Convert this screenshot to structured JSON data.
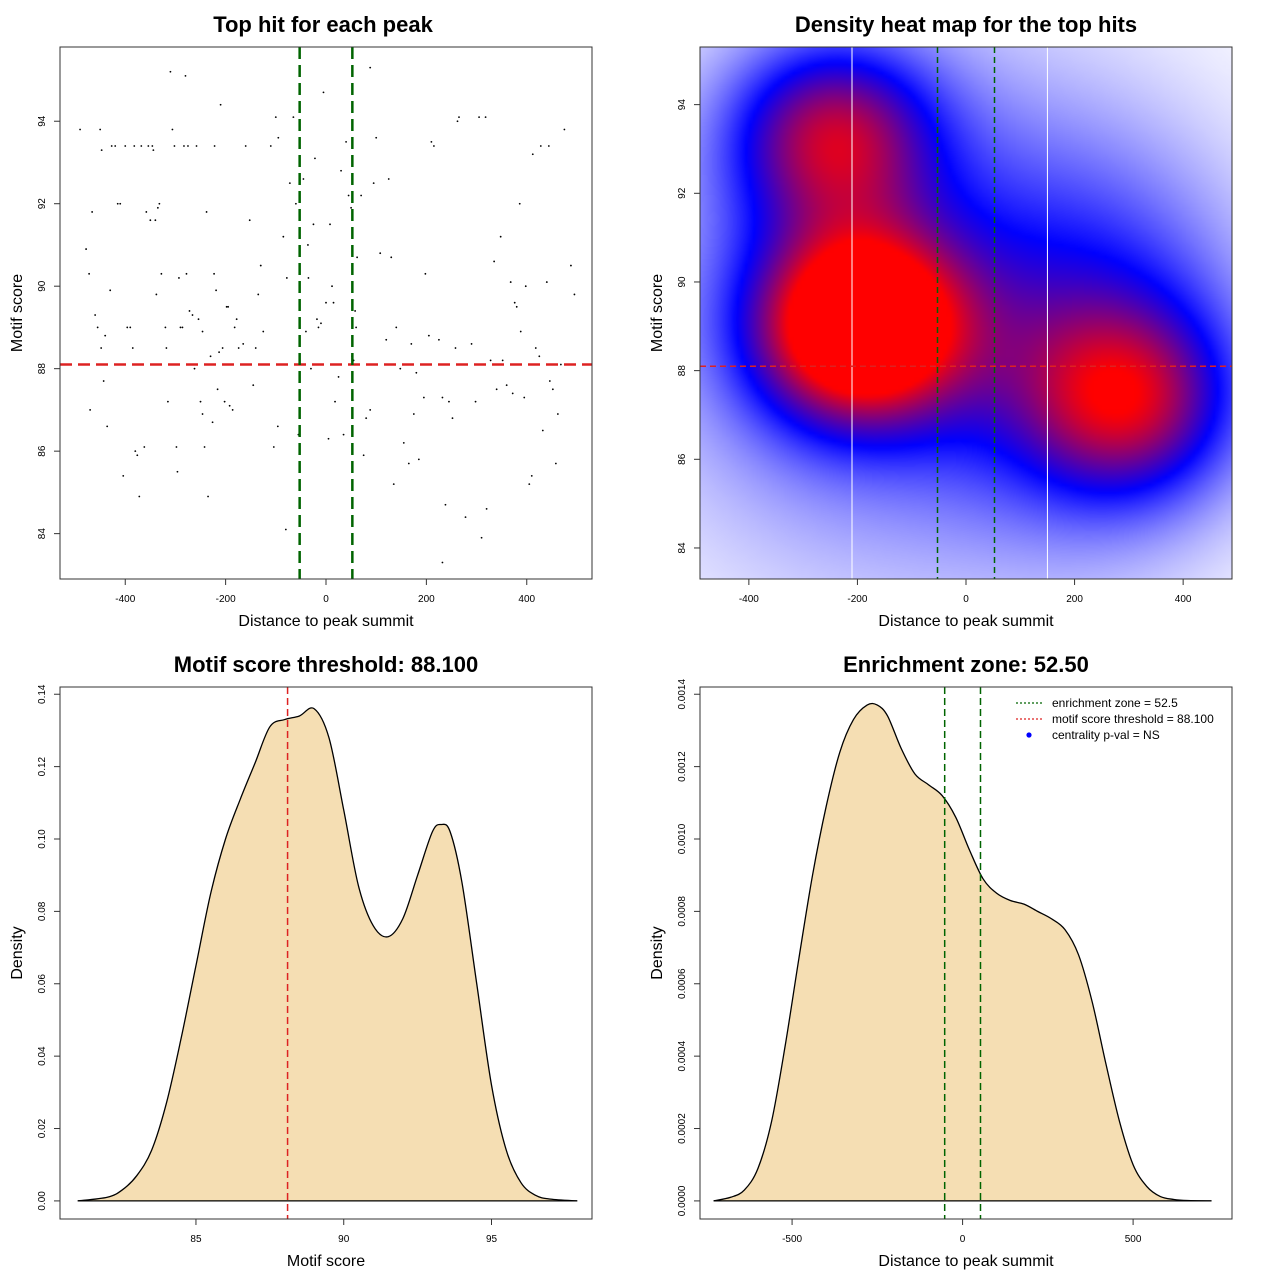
{
  "chart_data": [
    {
      "type": "scatter",
      "title": "Top hit for each peak",
      "xlabel": "Distance to peak summit",
      "ylabel": "Motif score",
      "xlim": [
        -530,
        530
      ],
      "ylim": [
        82.9,
        95.8
      ],
      "xticks": [
        -400,
        -200,
        0,
        200,
        400
      ],
      "yticks": [
        84,
        86,
        88,
        90,
        92,
        94
      ],
      "hline": 88.1,
      "vlines": [
        -52.5,
        52.5
      ],
      "colors": {
        "points": "#000000",
        "hline": "#dd2222",
        "vlines": "#006400"
      },
      "points": [
        [
          -490,
          93.8
        ],
        [
          -478,
          90.9
        ],
        [
          -472,
          90.3
        ],
        [
          -466,
          91.8
        ],
        [
          -460,
          89.3
        ],
        [
          -455,
          89.0
        ],
        [
          -450,
          93.8
        ],
        [
          -448,
          88.5
        ],
        [
          -443,
          87.7
        ],
        [
          -440,
          88.8
        ],
        [
          -436,
          86.6
        ],
        [
          -430,
          89.9
        ],
        [
          -420,
          93.4
        ],
        [
          -415,
          92.0
        ],
        [
          -410,
          92.0
        ],
        [
          -400,
          93.4
        ],
        [
          -396,
          89.0
        ],
        [
          -390,
          89.0
        ],
        [
          -385,
          88.5
        ],
        [
          -380,
          86.0
        ],
        [
          -376,
          85.9
        ],
        [
          -372,
          84.9
        ],
        [
          -368,
          93.4
        ],
        [
          -362,
          86.1
        ],
        [
          -358,
          91.8
        ],
        [
          -354,
          93.4
        ],
        [
          -350,
          91.6
        ],
        [
          -346,
          93.4
        ],
        [
          -340,
          91.6
        ],
        [
          -338,
          89.8
        ],
        [
          -335,
          91.9
        ],
        [
          -332,
          92.0
        ],
        [
          -328,
          90.3
        ],
        [
          -320,
          89.0
        ],
        [
          -315,
          87.2
        ],
        [
          -310,
          95.2
        ],
        [
          -306,
          93.8
        ],
        [
          -302,
          93.4
        ],
        [
          -298,
          86.1
        ],
        [
          -296,
          85.5
        ],
        [
          -293,
          90.2
        ],
        [
          -290,
          89.0
        ],
        [
          -286,
          89.0
        ],
        [
          -283,
          93.4
        ],
        [
          -280,
          95.1
        ],
        [
          -278,
          90.3
        ],
        [
          -275,
          93.4
        ],
        [
          -272,
          89.4
        ],
        [
          -270,
          88.1
        ],
        [
          -266,
          89.3
        ],
        [
          -262,
          88.0
        ],
        [
          -258,
          93.4
        ],
        [
          -254,
          89.2
        ],
        [
          -250,
          87.2
        ],
        [
          -246,
          86.9
        ],
        [
          -242,
          86.1
        ],
        [
          -238,
          91.8
        ],
        [
          -235,
          84.9
        ],
        [
          -230,
          88.3
        ],
        [
          -226,
          86.7
        ],
        [
          -222,
          93.4
        ],
        [
          -219,
          89.9
        ],
        [
          -216,
          87.5
        ],
        [
          -213,
          88.4
        ],
        [
          -210,
          94.4
        ],
        [
          -206,
          88.5
        ],
        [
          -202,
          87.2
        ],
        [
          -198,
          89.5
        ],
        [
          -195,
          89.5
        ],
        [
          -192,
          87.1
        ],
        [
          -186,
          87.0
        ],
        [
          -182,
          89.0
        ],
        [
          -178,
          89.2
        ],
        [
          -174,
          88.5
        ],
        [
          -165,
          88.6
        ],
        [
          -160,
          93.4
        ],
        [
          -152,
          91.6
        ],
        [
          -145,
          87.6
        ],
        [
          -140,
          88.5
        ],
        [
          -135,
          89.8
        ],
        [
          -130,
          90.5
        ],
        [
          -125,
          88.9
        ],
        [
          -110,
          93.4
        ],
        [
          -104,
          86.1
        ],
        [
          -100,
          94.1
        ],
        [
          -95,
          93.6
        ],
        [
          -85,
          91.2
        ],
        [
          -78,
          90.2
        ],
        [
          -72,
          92.5
        ],
        [
          -65,
          94.1
        ],
        [
          -60,
          92.0
        ],
        [
          -55,
          86.4
        ],
        [
          -45,
          92.6
        ],
        [
          -40,
          88.9
        ],
        [
          -35,
          90.2
        ],
        [
          -30,
          88.0
        ],
        [
          -25,
          91.5
        ],
        [
          -22,
          93.1
        ],
        [
          -18,
          89.2
        ],
        [
          -15,
          89.0
        ],
        [
          -10,
          89.1
        ],
        [
          -5,
          94.7
        ],
        [
          0,
          89.6
        ],
        [
          5,
          86.3
        ],
        [
          8,
          91.5
        ],
        [
          12,
          90.0
        ],
        [
          15,
          89.6
        ],
        [
          18,
          87.2
        ],
        [
          25,
          87.8
        ],
        [
          30,
          92.8
        ],
        [
          35,
          86.4
        ],
        [
          40,
          93.5
        ],
        [
          45,
          92.2
        ],
        [
          50,
          91.9
        ],
        [
          52,
          88.3
        ],
        [
          55,
          88.2
        ],
        [
          58,
          89.4
        ],
        [
          60,
          89.0
        ],
        [
          62,
          90.7
        ],
        [
          70,
          92.2
        ],
        [
          75,
          85.9
        ],
        [
          80,
          86.8
        ],
        [
          88,
          87.0
        ],
        [
          95,
          92.5
        ],
        [
          100,
          93.6
        ],
        [
          108,
          90.8
        ],
        [
          120,
          88.7
        ],
        [
          125,
          92.6
        ],
        [
          130,
          90.7
        ],
        [
          140,
          89.0
        ],
        [
          148,
          88.0
        ],
        [
          155,
          86.2
        ],
        [
          165,
          85.7
        ],
        [
          170,
          88.6
        ],
        [
          175,
          86.9
        ],
        [
          180,
          87.9
        ],
        [
          185,
          85.8
        ],
        [
          195,
          87.3
        ],
        [
          205,
          88.8
        ],
        [
          210,
          93.5
        ],
        [
          215,
          93.4
        ],
        [
          225,
          88.7
        ],
        [
          232,
          87.3
        ],
        [
          238,
          84.7
        ],
        [
          245,
          87.2
        ],
        [
          252,
          86.8
        ],
        [
          258,
          88.5
        ],
        [
          265,
          94.1
        ],
        [
          278,
          84.4
        ],
        [
          290,
          88.6
        ],
        [
          298,
          87.2
        ],
        [
          305,
          94.1
        ],
        [
          318,
          94.1
        ],
        [
          328,
          88.2
        ],
        [
          335,
          90.6
        ],
        [
          340,
          87.5
        ],
        [
          352,
          88.2
        ],
        [
          360,
          87.6
        ],
        [
          368,
          90.1
        ],
        [
          372,
          87.4
        ],
        [
          376,
          89.6
        ],
        [
          380,
          89.5
        ],
        [
          388,
          88.9
        ],
        [
          395,
          87.3
        ],
        [
          398,
          90.0
        ],
        [
          405,
          85.2
        ],
        [
          410,
          85.4
        ],
        [
          418,
          88.5
        ],
        [
          425,
          88.3
        ],
        [
          432,
          86.5
        ],
        [
          440,
          90.1
        ],
        [
          446,
          87.7
        ],
        [
          452,
          87.5
        ],
        [
          458,
          85.7
        ],
        [
          462,
          86.9
        ],
        [
          468,
          88.1
        ],
        [
          475,
          93.8
        ],
        [
          488,
          90.5
        ],
        [
          495,
          89.8
        ],
        [
          -470,
          87.0
        ],
        [
          -447,
          93.3
        ],
        [
          -427,
          93.4
        ],
        [
          -404,
          85.4
        ],
        [
          -382,
          93.4
        ],
        [
          -344,
          93.3
        ],
        [
          -318,
          88.5
        ],
        [
          -246,
          88.9
        ],
        [
          -223,
          90.3
        ],
        [
          -96,
          86.6
        ],
        [
          -80,
          84.1
        ],
        [
          -36,
          91.0
        ],
        [
          88,
          95.3
        ],
        [
          135,
          85.2
        ],
        [
          198,
          90.3
        ],
        [
          232,
          83.3
        ],
        [
          262,
          94.0
        ],
        [
          310,
          83.9
        ],
        [
          320,
          84.6
        ],
        [
          348,
          91.2
        ],
        [
          386,
          92.0
        ],
        [
          412,
          93.2
        ],
        [
          428,
          93.4
        ],
        [
          444,
          93.4
        ]
      ]
    },
    {
      "type": "heatmap",
      "title": "Density heat map for the top hits",
      "xlabel": "Distance to peak summit",
      "ylabel": "Motif score",
      "xlim": [
        -490,
        490
      ],
      "ylim": [
        83.3,
        95.3
      ],
      "xticks": [
        -400,
        -200,
        0,
        200,
        400
      ],
      "yticks": [
        84,
        86,
        88,
        90,
        92,
        94
      ],
      "hline": 88.1,
      "vlines_dashed": [
        -52.5,
        52.5
      ],
      "vlines_solid": [
        -210,
        150
      ],
      "colors": {
        "low": "#ffffff",
        "mid": "#0000ff",
        "high": "#ff0000",
        "hline": "#dd2222",
        "vlines_dashed": "#006400",
        "vlines_solid": "#ffffff"
      },
      "density_centers": [
        {
          "x": -195,
          "y": 89.0,
          "weight": 1.0
        },
        {
          "x": -245,
          "y": 93.3,
          "weight": 0.6
        },
        {
          "x": 300,
          "y": 87.3,
          "weight": 0.5
        }
      ]
    },
    {
      "type": "area",
      "title": "Motif score threshold: 88.100",
      "xlabel": "Motif score",
      "ylabel": "Density",
      "xlim": [
        80.4,
        98.4
      ],
      "ylim": [
        -0.005,
        0.142
      ],
      "xticks": [
        85,
        90,
        95
      ],
      "yticks": [
        0.0,
        0.02,
        0.04,
        0.06,
        0.08,
        0.1,
        0.12,
        0.14
      ],
      "ytick_labels": [
        "0.00",
        "0.02",
        "0.04",
        "0.06",
        "0.08",
        "0.10",
        "0.12",
        "0.14"
      ],
      "vline": 88.1,
      "colors": {
        "fill": "#f5deb3",
        "line": "#000000",
        "vline": "#dd2222"
      },
      "x": [
        81.0,
        82.0,
        82.5,
        83.0,
        83.5,
        84.0,
        84.5,
        85.0,
        85.5,
        86.0,
        86.5,
        87.0,
        87.5,
        88.0,
        88.5,
        89.0,
        89.5,
        90.0,
        90.5,
        91.0,
        91.5,
        92.0,
        92.5,
        93.0,
        93.3,
        93.6,
        94.0,
        94.5,
        95.0,
        95.5,
        96.0,
        96.5,
        97.0,
        97.9
      ],
      "values": [
        0.0,
        0.001,
        0.003,
        0.007,
        0.014,
        0.027,
        0.045,
        0.065,
        0.085,
        0.1,
        0.111,
        0.121,
        0.131,
        0.133,
        0.134,
        0.136,
        0.128,
        0.108,
        0.087,
        0.076,
        0.073,
        0.078,
        0.09,
        0.102,
        0.104,
        0.102,
        0.088,
        0.06,
        0.032,
        0.014,
        0.005,
        0.0015,
        0.0005,
        0.0
      ]
    },
    {
      "type": "area",
      "title": "Enrichment zone: 52.50",
      "xlabel": "Distance to peak summit",
      "ylabel": "Density",
      "xlim": [
        -770,
        790
      ],
      "ylim": [
        -5e-05,
        0.00142
      ],
      "xticks": [
        -500,
        0,
        500
      ],
      "yticks": [
        0.0,
        0.0002,
        0.0004,
        0.0006,
        0.0008,
        0.001,
        0.0012,
        0.0014
      ],
      "ytick_labels": [
        "0.0000",
        "0.0002",
        "0.0004",
        "0.0006",
        "0.0008",
        "0.0010",
        "0.0012",
        "0.0014"
      ],
      "vlines": [
        -52.5,
        52.5
      ],
      "colors": {
        "fill": "#f5deb3",
        "line": "#000000",
        "vlines": "#006400",
        "legend_zone": "#006400",
        "legend_threshold": "#dd2222",
        "legend_pval": "#0000ff"
      },
      "x": [
        -730,
        -680,
        -640,
        -600,
        -560,
        -520,
        -480,
        -440,
        -400,
        -360,
        -320,
        -280,
        -250,
        -220,
        -180,
        -140,
        -100,
        -60,
        -20,
        20,
        60,
        100,
        140,
        180,
        220,
        260,
        300,
        340,
        380,
        420,
        460,
        500,
        540,
        580,
        620,
        660,
        730
      ],
      "values": [
        0.0,
        1e-05,
        3e-05,
        9e-05,
        0.00022,
        0.00043,
        0.00067,
        0.0009,
        0.00109,
        0.00124,
        0.00133,
        0.00137,
        0.00137,
        0.00134,
        0.00125,
        0.00118,
        0.00115,
        0.00112,
        0.00106,
        0.00097,
        0.00089,
        0.00085,
        0.00083,
        0.00082,
        0.0008,
        0.00078,
        0.00075,
        0.00068,
        0.00055,
        0.00038,
        0.00022,
        0.0001,
        4e-05,
        1.2e-05,
        4e-06,
        1e-06,
        0.0
      ],
      "legend": [
        {
          "label": "enrichment zone = 52.5",
          "style": "dotted",
          "color": "#006400"
        },
        {
          "label": "motif score threshold = 88.100",
          "style": "dotted",
          "color": "#dd2222"
        },
        {
          "label": "centrality p-val = NS",
          "style": "point",
          "color": "#0000ff"
        }
      ]
    }
  ]
}
